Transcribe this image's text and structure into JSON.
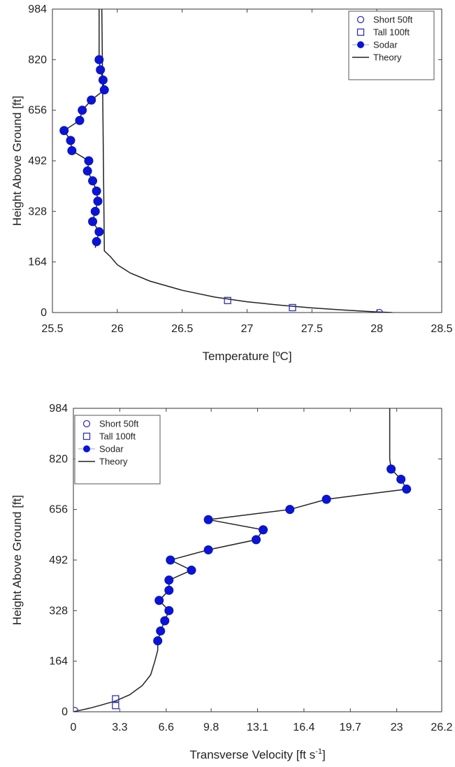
{
  "chart_data": [
    {
      "type": "scatter",
      "xlabel": "Temperature [ºC]",
      "ylabel": "Height Above Ground [ft]",
      "xlim": [
        25.5,
        28.5
      ],
      "ylim": [
        0,
        984
      ],
      "xticks": [
        "25.5",
        "26",
        "26.5",
        "27",
        "27.5",
        "28",
        "28.5"
      ],
      "yticks": [
        "0",
        "164",
        "328",
        "492",
        "656",
        "820",
        "984"
      ],
      "legend_position": "top-right",
      "legend": [
        "Short 50ft",
        "Tall 100ft",
        "Sodar",
        "Theory"
      ],
      "series": [
        {
          "name": "Short 50ft",
          "marker": "circle-open",
          "x": [
            28.02
          ],
          "y": [
            0
          ]
        },
        {
          "name": "Tall 100ft",
          "marker": "square-open",
          "x": [
            26.85,
            27.35
          ],
          "y": [
            39,
            16
          ]
        },
        {
          "name": "Sodar",
          "marker": "circle-filled",
          "x": [
            25.86,
            25.87,
            25.89,
            25.9,
            25.8,
            25.73,
            25.71,
            25.59,
            25.64,
            25.65,
            25.78,
            25.77,
            25.81,
            25.84,
            25.85,
            25.83,
            25.81,
            25.86,
            25.84
          ],
          "y": [
            820,
            787,
            754,
            722,
            689,
            656,
            623,
            590,
            558,
            525,
            492,
            459,
            427,
            394,
            361,
            328,
            295,
            262,
            230
          ]
        },
        {
          "name": "Theory",
          "marker": "line",
          "x": [
            28.12,
            28.0,
            27.75,
            27.5,
            27.25,
            27.0,
            26.75,
            26.5,
            26.25,
            26.1,
            26.0,
            25.95,
            25.9,
            25.88,
            25.86,
            25.86,
            25.87,
            25.89,
            25.9,
            25.8,
            25.73,
            25.71,
            25.59,
            25.64,
            25.65,
            25.78,
            25.77,
            25.81,
            25.84,
            25.85,
            25.83,
            25.81,
            25.86,
            25.84,
            25.83
          ],
          "y": [
            0,
            2,
            8,
            15,
            24,
            35,
            50,
            72,
            102,
            128,
            155,
            180,
            200,
            1000,
            984,
            820,
            787,
            754,
            722,
            689,
            656,
            623,
            590,
            558,
            525,
            492,
            459,
            427,
            394,
            361,
            328,
            295,
            262,
            230,
            210
          ]
        }
      ]
    },
    {
      "type": "scatter",
      "xlabel": "Transverse Velocity [ft s",
      "xlabel_sup": "-1",
      "xlabel_end": "]",
      "ylabel": "Height Above Ground [ft]",
      "xlim": [
        0,
        26.2
      ],
      "ylim": [
        0,
        984
      ],
      "xticks": [
        "0",
        "3.3",
        "6.6",
        "9.8",
        "13.1",
        "16.4",
        "19.7",
        "23",
        "26.2"
      ],
      "yticks": [
        "0",
        "164",
        "328",
        "492",
        "656",
        "820",
        "984"
      ],
      "legend_position": "top-left",
      "legend": [
        "Short 50ft",
        "Tall 100ft",
        "Sodar",
        "Theory"
      ],
      "series": [
        {
          "name": "Short 50ft",
          "marker": "circle-open",
          "x": [
            0.1
          ],
          "y": [
            4
          ]
        },
        {
          "name": "Tall 100ft",
          "marker": "square-open",
          "x": [
            3.0,
            3.0
          ],
          "y": [
            20,
            42
          ]
        },
        {
          "name": "Sodar",
          "marker": "circle-filled",
          "x": [
            22.6,
            23.3,
            23.7,
            18.0,
            15.4,
            9.6,
            13.5,
            13.0,
            9.6,
            6.9,
            8.4,
            6.8,
            6.8,
            6.1,
            6.8,
            6.5,
            6.2,
            6.0
          ],
          "y": [
            787,
            754,
            722,
            689,
            656,
            623,
            590,
            558,
            525,
            492,
            459,
            427,
            394,
            361,
            328,
            295,
            262,
            230
          ]
        },
        {
          "name": "Theory",
          "marker": "line",
          "x": [
            0,
            0.5,
            1.2,
            2.0,
            3.0,
            4.0,
            4.9,
            5.5,
            5.8,
            6.0,
            6.0,
            6.2,
            6.5,
            6.8,
            6.1,
            6.8,
            6.8,
            8.4,
            6.9,
            9.6,
            13.0,
            13.5,
            9.6,
            15.4,
            18.0,
            23.7,
            23.3,
            22.6,
            22.5,
            22.5
          ],
          "y": [
            0,
            5,
            12,
            22,
            35,
            55,
            85,
            120,
            165,
            200,
            230,
            262,
            295,
            328,
            361,
            394,
            427,
            459,
            492,
            525,
            558,
            590,
            623,
            656,
            689,
            722,
            754,
            787,
            820,
            984
          ]
        }
      ]
    }
  ]
}
